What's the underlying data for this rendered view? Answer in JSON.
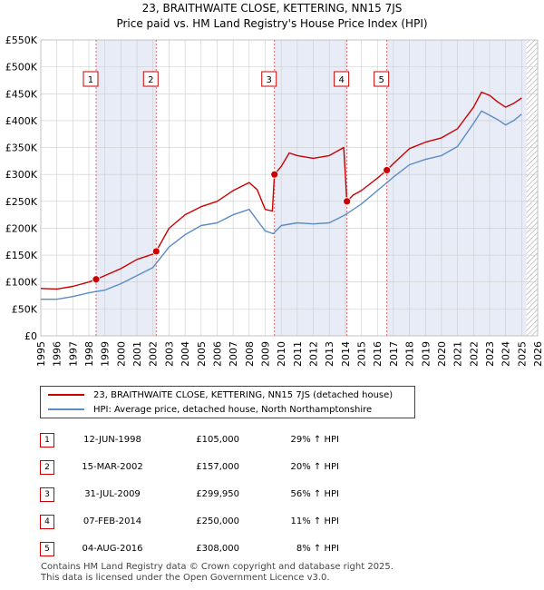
{
  "title_line1": "23, BRAITHWAITE CLOSE, KETTERING, NN15 7JS",
  "title_line2": "Price paid vs. HM Land Registry's House Price Index (HPI)",
  "colors": {
    "property": "#cc0000",
    "hpi": "#5b8cc4",
    "shade": "#e8ecf7",
    "grid": "#cccccc",
    "marker_line": "#dd6666"
  },
  "legend": {
    "property_label": "23, BRAITHWAITE CLOSE, KETTERING, NN15 7JS (detached house)",
    "hpi_label": "HPI: Average price, detached house, North Northamptonshire"
  },
  "sales": [
    {
      "num": "1",
      "date": "12-JUN-1998",
      "price": "£105,000",
      "hpi": "29% ↑ HPI"
    },
    {
      "num": "2",
      "date": "15-MAR-2002",
      "price": "£157,000",
      "hpi": "20% ↑ HPI"
    },
    {
      "num": "3",
      "date": "31-JUL-2009",
      "price": "£299,950",
      "hpi": "56% ↑ HPI"
    },
    {
      "num": "4",
      "date": "07-FEB-2014",
      "price": "£250,000",
      "hpi": "11% ↑ HPI"
    },
    {
      "num": "5",
      "date": "04-AUG-2016",
      "price": "£308,000",
      "hpi": "8% ↑ HPI"
    }
  ],
  "footer_line1": "Contains HM Land Registry data © Crown copyright and database right 2025.",
  "footer_line2": "This data is licensed under the Open Government Licence v3.0.",
  "chart_data": {
    "type": "line",
    "title": "Price paid vs. HM Land Registry's House Price Index (HPI)",
    "xlim": [
      1995,
      2026
    ],
    "ylim": [
      0,
      550000
    ],
    "x_ticks": [
      1995,
      1996,
      1997,
      1998,
      1999,
      2000,
      2001,
      2002,
      2003,
      2004,
      2005,
      2006,
      2007,
      2008,
      2009,
      2010,
      2011,
      2012,
      2013,
      2014,
      2015,
      2016,
      2017,
      2018,
      2019,
      2020,
      2021,
      2022,
      2023,
      2024,
      2025,
      2026
    ],
    "y_ticks": [
      {
        "value": 0,
        "label": "£0"
      },
      {
        "value": 50000,
        "label": "£50K"
      },
      {
        "value": 100000,
        "label": "£100K"
      },
      {
        "value": 150000,
        "label": "£150K"
      },
      {
        "value": 200000,
        "label": "£200K"
      },
      {
        "value": 250000,
        "label": "£250K"
      },
      {
        "value": 300000,
        "label": "£300K"
      },
      {
        "value": 350000,
        "label": "£350K"
      },
      {
        "value": 400000,
        "label": "£400K"
      },
      {
        "value": 450000,
        "label": "£450K"
      },
      {
        "value": 500000,
        "label": "£500K"
      },
      {
        "value": 550000,
        "label": "£550K"
      }
    ],
    "shaded_ranges": [
      [
        1998.45,
        2002.2
      ],
      [
        2009.58,
        2014.1
      ],
      [
        2016.59,
        2025.3
      ]
    ],
    "hatched_range": [
      2025.3,
      2026
    ],
    "sale_points": [
      {
        "num": "1",
        "x": 1998.45,
        "y": 105000
      },
      {
        "num": "2",
        "x": 2002.2,
        "y": 157000
      },
      {
        "num": "3",
        "x": 2009.58,
        "y": 299950
      },
      {
        "num": "4",
        "x": 2014.1,
        "y": 250000
      },
      {
        "num": "5",
        "x": 2016.59,
        "y": 308000
      }
    ],
    "series": [
      {
        "name": "23, BRAITHWAITE CLOSE, KETTERING, NN15 7JS (detached house)",
        "x": [
          1995,
          1996,
          1997,
          1998,
          1998.45,
          1999,
          2000,
          2001,
          2002,
          2002.2,
          2003,
          2004,
          2005,
          2006,
          2007,
          2008,
          2008.5,
          2009,
          2009.45,
          2009.58,
          2010,
          2010.5,
          2011,
          2012,
          2013,
          2013.9,
          2014.1,
          2014.5,
          2015,
          2016,
          2016.59,
          2017,
          2018,
          2019,
          2020,
          2021,
          2022,
          2022.5,
          2023,
          2023.5,
          2024,
          2024.5,
          2025
        ],
        "y": [
          88000,
          87000,
          92000,
          100000,
          105000,
          112000,
          125000,
          142000,
          152000,
          157000,
          200000,
          225000,
          240000,
          250000,
          270000,
          285000,
          272000,
          235000,
          232000,
          299950,
          315000,
          340000,
          335000,
          330000,
          335000,
          350000,
          250000,
          262000,
          270000,
          293000,
          308000,
          320000,
          348000,
          360000,
          368000,
          385000,
          425000,
          453000,
          447000,
          435000,
          425000,
          432000,
          442000
        ]
      },
      {
        "name": "HPI: Average price, detached house, North Northamptonshire",
        "x": [
          1995,
          1996,
          1997,
          1998,
          1999,
          2000,
          2001,
          2002,
          2003,
          2004,
          2005,
          2006,
          2007,
          2008,
          2008.5,
          2009,
          2009.5,
          2010,
          2011,
          2012,
          2013,
          2014,
          2015,
          2016,
          2017,
          2018,
          2019,
          2020,
          2021,
          2022,
          2022.5,
          2023,
          2023.5,
          2024,
          2024.5,
          2025
        ],
        "y": [
          68000,
          68000,
          73000,
          80000,
          85000,
          97000,
          112000,
          127000,
          165000,
          188000,
          205000,
          210000,
          225000,
          235000,
          215000,
          195000,
          190000,
          205000,
          210000,
          208000,
          210000,
          225000,
          245000,
          270000,
          295000,
          318000,
          328000,
          335000,
          352000,
          395000,
          418000,
          410000,
          402000,
          392000,
          400000,
          412000
        ]
      }
    ]
  }
}
